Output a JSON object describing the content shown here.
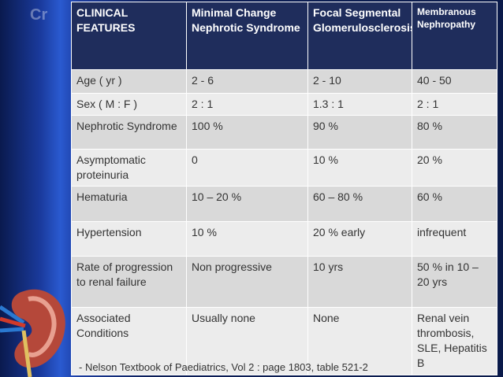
{
  "logo_text": "Cr",
  "table": {
    "header": [
      "CLINICAL FEATURES",
      "Minimal Change Nephrotic Syndrome",
      "Focal Segmental Glomerulosclerosis",
      "Membranous Nephropathy"
    ],
    "rows": [
      [
        "Age ( yr )",
        "2 -  6",
        "2 - 10",
        "40 - 50"
      ],
      [
        "Sex ( M : F )",
        "2 : 1",
        "1.3 : 1",
        "2 : 1"
      ],
      [
        "Nephrotic Syndrome",
        "100 %",
        "90 %",
        "80 %"
      ],
      [
        "Asymptomatic proteinuria",
        "0",
        "10 %",
        "20 %"
      ],
      [
        "Hematuria",
        "10 – 20 %",
        "60 – 80 %",
        "60 %"
      ],
      [
        "Hypertension",
        "10 %",
        "20 % early",
        "infrequent"
      ],
      [
        "Rate of progression to renal failure",
        "Non progressive",
        "10 yrs",
        "50 % in 10 – 20 yrs"
      ],
      [
        "Associated Conditions",
        "Usually none",
        "None",
        "Renal vein thrombosis, SLE, Hepatitis B"
      ]
    ]
  },
  "footnote": "- Nelson Textbook of Paediatrics, Vol 2 : page 1803, table 521-2"
}
